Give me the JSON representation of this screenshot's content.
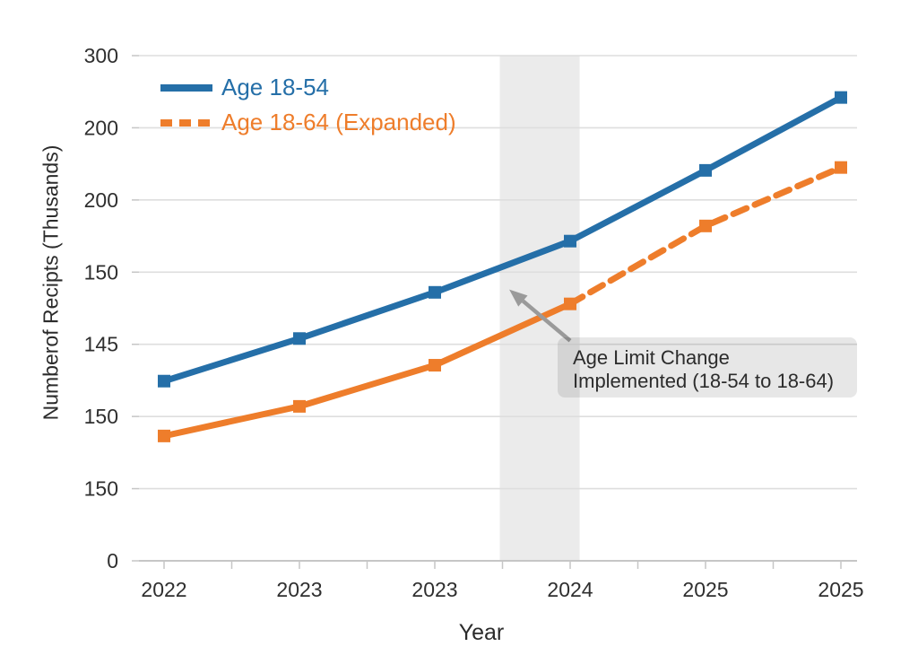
{
  "chart_data": {
    "type": "line",
    "title": "",
    "xlabel": "Year",
    "ylabel": "Numberof Recipts (Thusands)",
    "x_tick_labels": [
      "2022",
      "2023",
      "2023",
      "2024",
      "2025",
      "2025"
    ],
    "y_tick_labels": [
      "300",
      "200",
      "200",
      "150",
      "145",
      "150",
      "150",
      "0"
    ],
    "grid": true,
    "legend_position": "top-left",
    "y_value_units": "gridline intervals above bottom axis (0 = bottom axis, 7 = top gridline)",
    "series": [
      {
        "name": "Age 18-54",
        "color": "#256fa8",
        "style": "solid",
        "marker": "square",
        "values": [
          2.49,
          3.08,
          3.72,
          4.43,
          5.41,
          6.42
        ]
      },
      {
        "name": "Age 18-64 (Expanded)",
        "color": "#ee7d2b",
        "style": "solid-then-dashed",
        "dashed_from_index": 3,
        "marker": "square",
        "values": [
          1.73,
          2.14,
          2.71,
          3.56,
          4.64,
          5.45
        ]
      }
    ],
    "highlight_band": {
      "from_index": 2.48,
      "to_index": 3.07,
      "color": "#ebebeb"
    },
    "annotation": {
      "line1": "Age Limit Change",
      "line2": "Implemented (18-54 to 18-64)",
      "box_color": "#e8e8e8",
      "arrow_color": "#9a9a9a",
      "arrow_from": {
        "index": 3.0,
        "value": 3.05
      },
      "arrow_to": {
        "index": 2.55,
        "value": 3.76
      }
    },
    "colors": {
      "grid": "#dedede",
      "axis": "#c6c6c6",
      "tick": "#c6c6c6",
      "text": "#2f2f2f"
    }
  }
}
